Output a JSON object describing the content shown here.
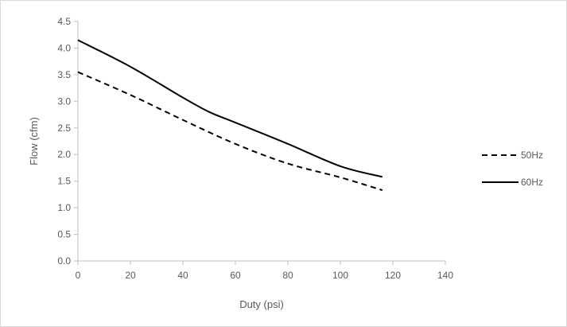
{
  "chart_data": {
    "type": "line",
    "title": "",
    "xlabel": "Duty (psi)",
    "ylabel": "Flow (cfm)",
    "xlim": [
      0,
      140
    ],
    "ylim": [
      0,
      4.5
    ],
    "x_ticks": [
      0,
      20,
      40,
      60,
      80,
      100,
      120,
      140
    ],
    "x_tick_labels": [
      "0",
      "20",
      "40",
      "60",
      "80",
      "100",
      "120",
      "140"
    ],
    "y_ticks": [
      0,
      0.5,
      1,
      1.5,
      2,
      2.5,
      3,
      3.5,
      4,
      4.5
    ],
    "y_tick_labels": [
      "0.0",
      "0.5",
      "1.0",
      "1.5",
      "2.0",
      "2.5",
      "3.0",
      "3.5",
      "4.0",
      "4.5"
    ],
    "grid": false,
    "legend_position": "right",
    "series": [
      {
        "name": "50Hz",
        "line_style": "dashed",
        "color": "#000000",
        "x": [
          0,
          20,
          40,
          60,
          80,
          100,
          116
        ],
        "y": [
          3.55,
          3.12,
          2.65,
          2.2,
          1.83,
          1.57,
          1.33
        ]
      },
      {
        "name": "60Hz",
        "line_style": "solid",
        "color": "#000000",
        "x": [
          0,
          20,
          40,
          50,
          60,
          80,
          100,
          116
        ],
        "y": [
          4.15,
          3.65,
          3.07,
          2.8,
          2.6,
          2.2,
          1.78,
          1.58
        ]
      }
    ]
  }
}
